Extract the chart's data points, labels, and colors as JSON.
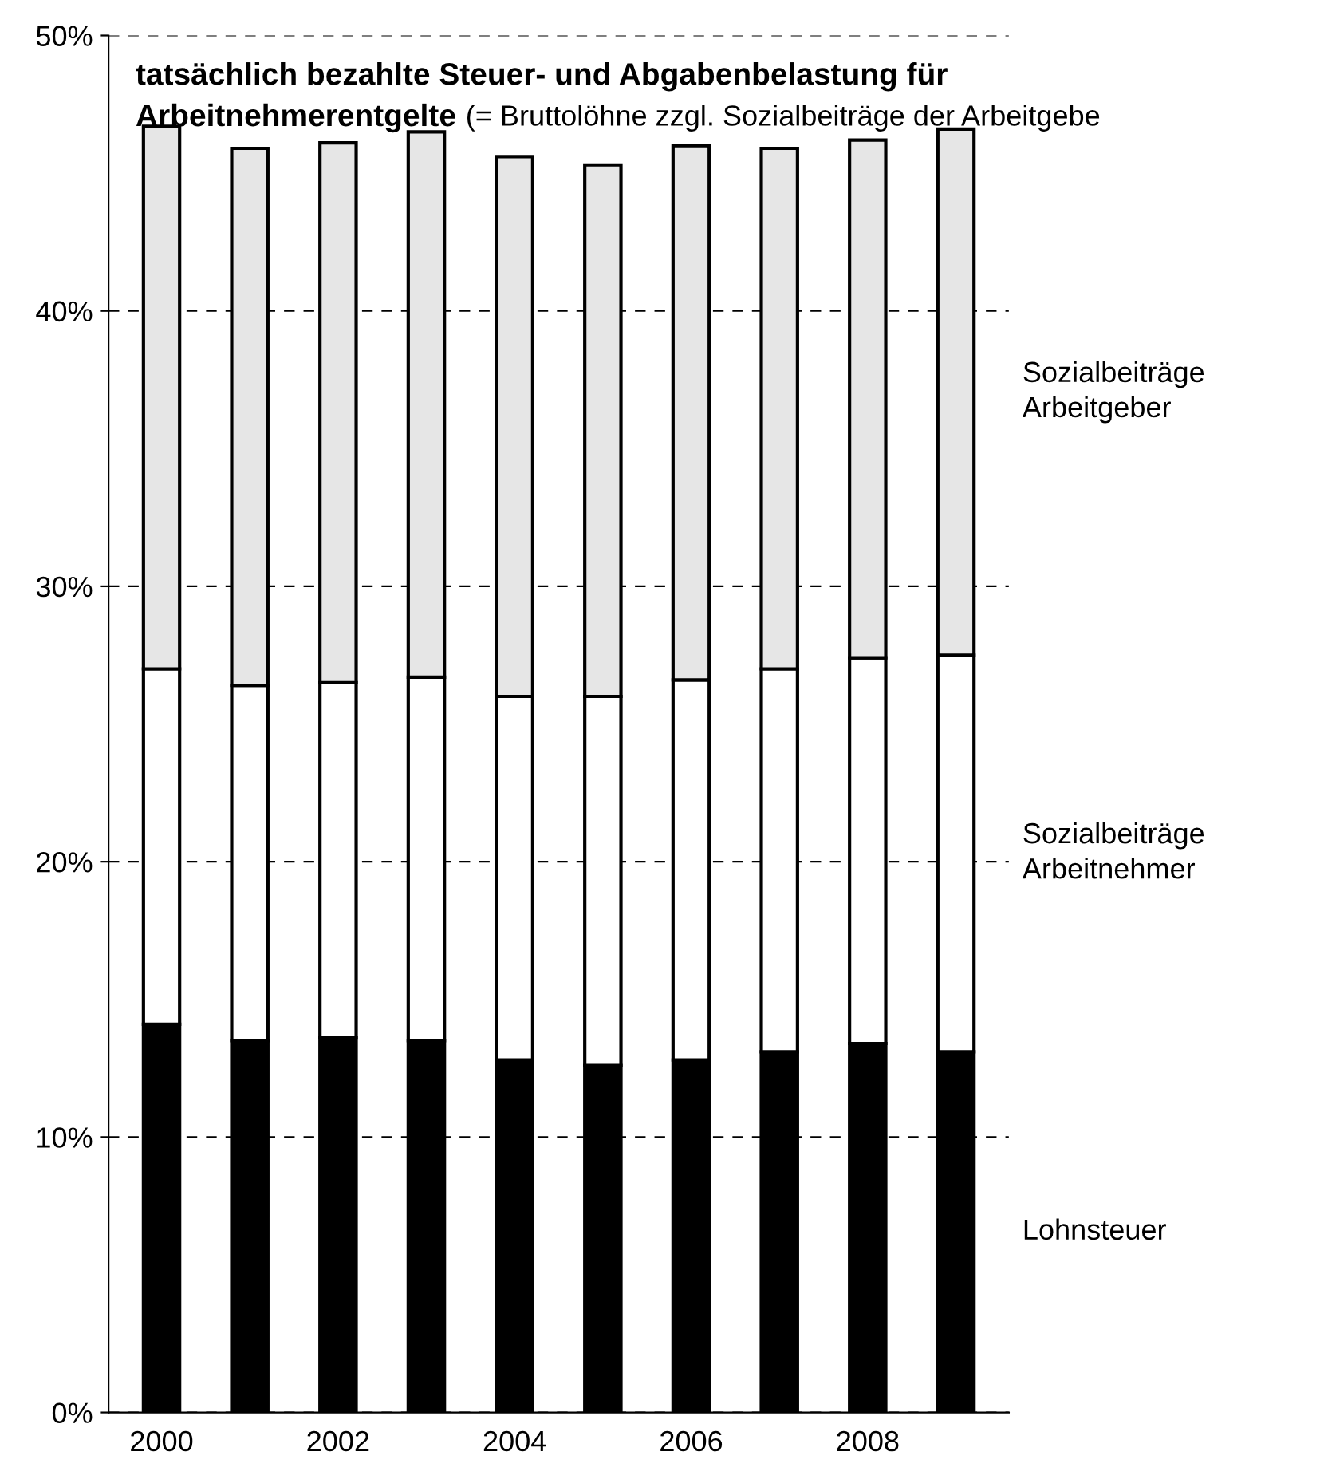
{
  "chart_data": {
    "type": "bar",
    "stacked": true,
    "title": "tatsächlich bezahlte Steuer- und Abgabenbelastung für Arbeitnehmerentgelte",
    "subtitle": "(= Bruttolöhne zzgl. Sozialbeiträge der Arbeitgebe",
    "categories": [
      "2000",
      null,
      "2002",
      null,
      "2004",
      null,
      "2006",
      null,
      "2008",
      null
    ],
    "series": [
      {
        "name": "Lohnsteuer",
        "color": "#000000",
        "values": [
          14.1,
          13.5,
          13.6,
          13.5,
          12.8,
          12.6,
          12.8,
          13.1,
          13.4,
          13.1
        ]
      },
      {
        "name": "Sozialbeiträge Arbeitnehmer",
        "color": "#ffffff",
        "values": [
          12.9,
          12.9,
          12.9,
          13.2,
          13.2,
          13.4,
          13.8,
          13.9,
          14.0,
          14.4
        ]
      },
      {
        "name": "Sozialbeiträge Arbeitgeber",
        "color": "#e6e6e6",
        "values": [
          19.7,
          19.5,
          19.6,
          19.8,
          19.6,
          19.3,
          19.4,
          18.9,
          18.8,
          19.1
        ]
      }
    ],
    "ylim": [
      0,
      50
    ],
    "yticks": [
      {
        "value": 0,
        "label": "0%"
      },
      {
        "value": 10,
        "label": "10%"
      },
      {
        "value": 20,
        "label": "20%"
      },
      {
        "value": 30,
        "label": "30%"
      },
      {
        "value": 40,
        "label": "40%"
      },
      {
        "value": 50,
        "label": "50%"
      }
    ],
    "grid": "y",
    "legend": "right"
  }
}
